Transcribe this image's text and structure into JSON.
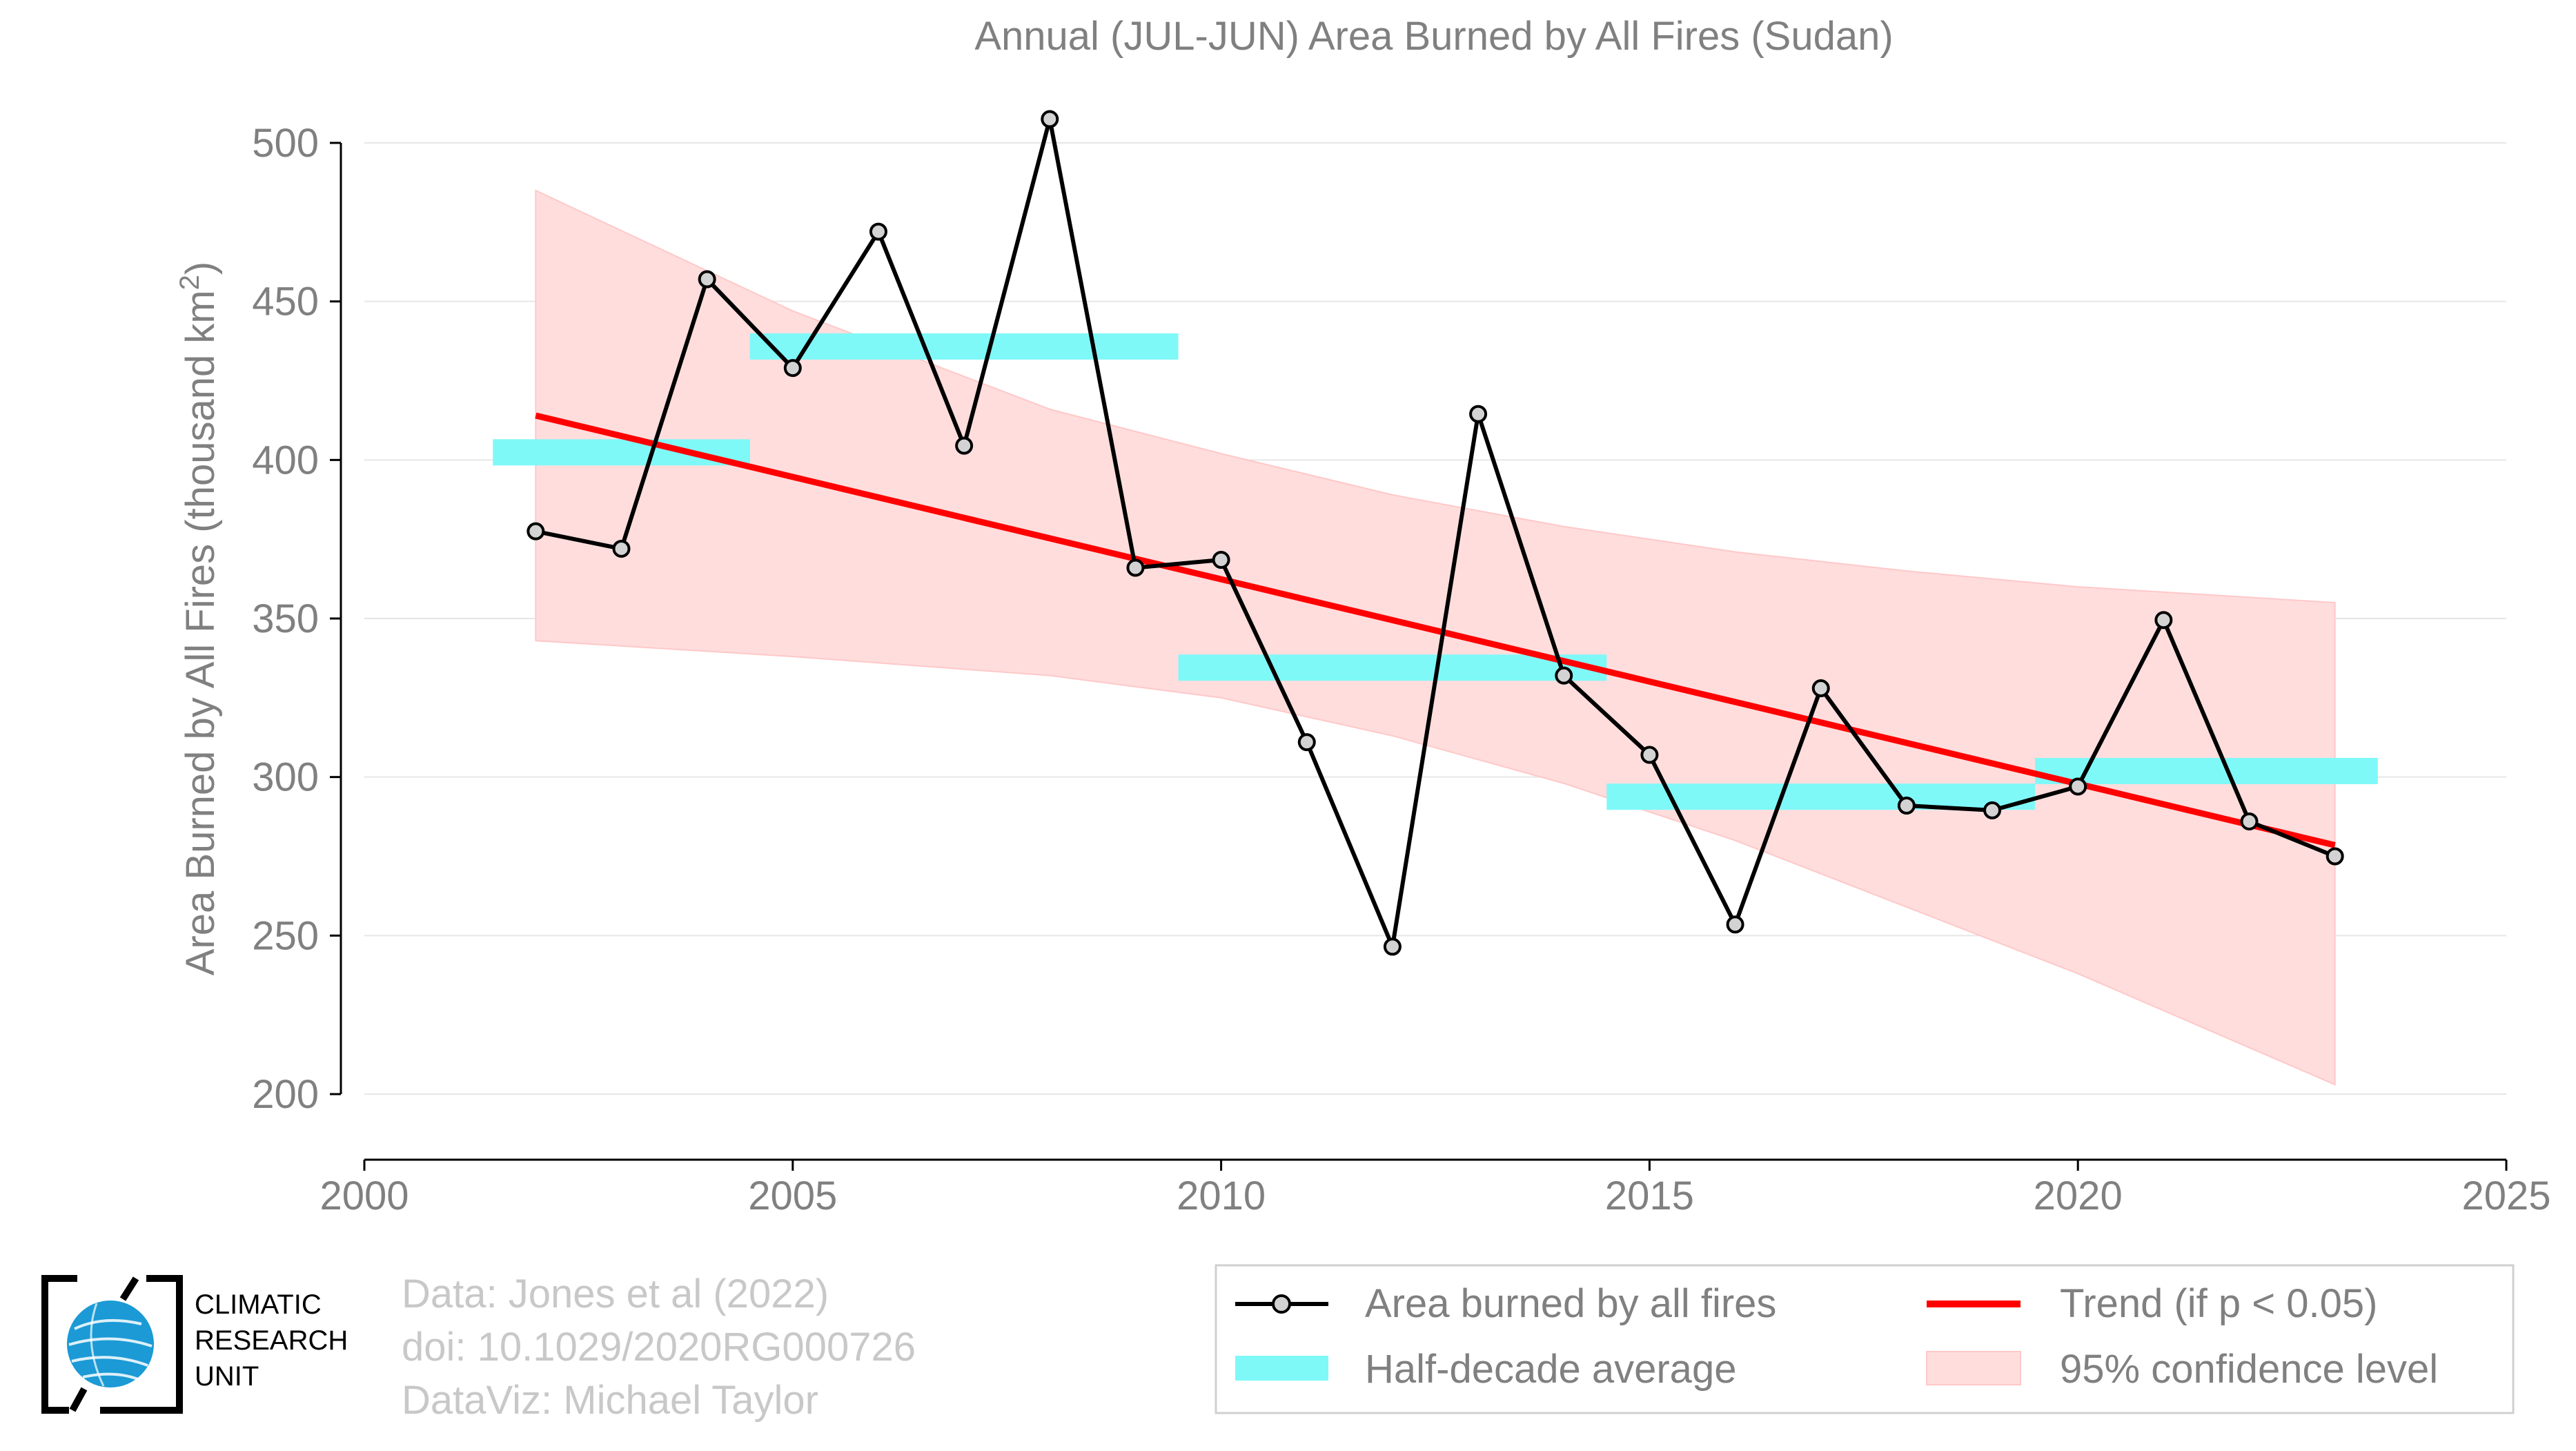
{
  "chart_data": {
    "type": "line",
    "title": "Annual (JUL-JUN) Area Burned by All Fires (Sudan)",
    "ylabel_main": "Area Burned by All Fires (thousand km",
    "ylabel_sup": "2",
    "ylabel_close": ")",
    "xlabel": "",
    "xlim": [
      2000,
      2025
    ],
    "ylim": [
      200,
      500
    ],
    "x_ticks": [
      2000,
      2005,
      2010,
      2015,
      2020,
      2025
    ],
    "y_ticks": [
      200,
      250,
      300,
      350,
      400,
      450,
      500
    ],
    "grid": "horizontal",
    "series": [
      {
        "name": "Area burned by all fires",
        "type": "line-markers",
        "color": "#000000",
        "x": [
          2002,
          2003,
          2004,
          2005,
          2006,
          2007,
          2008,
          2009,
          2010,
          2011,
          2012,
          2013,
          2014,
          2015,
          2016,
          2017,
          2018,
          2019,
          2020,
          2021,
          2022,
          2023
        ],
        "y": [
          377.5,
          372,
          457,
          429,
          472,
          404.5,
          507.5,
          366,
          368.5,
          311,
          246.5,
          414.5,
          332,
          307,
          253.5,
          328,
          291,
          289.5,
          297,
          349.5,
          286,
          275
        ]
      },
      {
        "name": "Half-decade average",
        "type": "bars",
        "color": "#7ff8f8",
        "segments": [
          {
            "x0": 2001.5,
            "x1": 2004.5,
            "y": 402.4
          },
          {
            "x0": 2004.5,
            "x1": 2009.5,
            "y": 435.8
          },
          {
            "x0": 2009.5,
            "x1": 2014.5,
            "y": 334.5
          },
          {
            "x0": 2014.5,
            "x1": 2019.5,
            "y": 293.8
          },
          {
            "x0": 2019.5,
            "x1": 2023.5,
            "y": 301.9
          }
        ]
      },
      {
        "name": "Trend (if p < 0.05)",
        "type": "line",
        "color": "#ff0000",
        "x": [
          2002,
          2023
        ],
        "y": [
          414,
          278.5
        ]
      },
      {
        "name": "95% confidence level",
        "type": "band",
        "color": "#ffdddd",
        "x": [
          2002,
          2005,
          2008,
          2010,
          2012,
          2014,
          2016,
          2018,
          2020,
          2023
        ],
        "upper": [
          485,
          447,
          416,
          402,
          389,
          379,
          371,
          365,
          360,
          355
        ],
        "lower": [
          343,
          338,
          332,
          325,
          313,
          298,
          280,
          259,
          238,
          203
        ]
      }
    ],
    "legend": {
      "position": "bottom-right",
      "entries": [
        {
          "label": "Area burned by all fires",
          "kind": "line-marker",
          "color": "#000000"
        },
        {
          "label": "Trend (if p < 0.05)",
          "kind": "line",
          "color": "#ff0000"
        },
        {
          "label": "Half-decade average",
          "kind": "bar",
          "color": "#7ff8f8"
        },
        {
          "label": "95% confidence level",
          "kind": "band",
          "color": "#ffdddd"
        }
      ]
    },
    "credits": [
      "Data: Jones et al (2022)",
      "doi: 10.1029/2020RG000726",
      "DataViz: Michael Taylor"
    ],
    "logo": {
      "lines": [
        "CLIMATIC",
        "RESEARCH",
        "UNIT"
      ],
      "icon": "globe-icon"
    }
  }
}
